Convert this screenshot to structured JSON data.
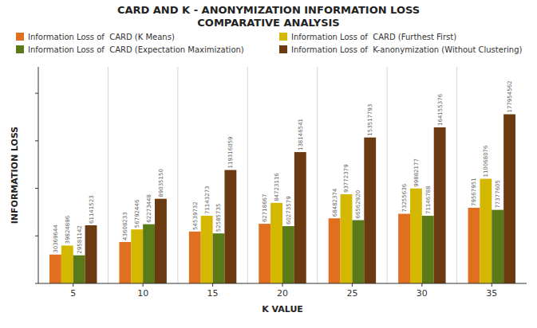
{
  "chart_data": {
    "type": "bar",
    "title": "CARD AND K - ANONYMIZATION INFORMATION LOSS\nCOMPARATIVE ANALYSIS",
    "x_label": "K VALUE",
    "y_label": "INFORMATION LOSS",
    "categories": [
      "5",
      "10",
      "15",
      "20",
      "25",
      "30",
      "35"
    ],
    "series": [
      {
        "name": "Information Loss of  CARD (K Means)",
        "color": "#E07020",
        "values": [
          30369644,
          43608233,
          54539732,
          62718667,
          68482374,
          73255636,
          79567951
        ]
      },
      {
        "name": "Information Loss of  CARD (Furthest First)",
        "color": "#D4B800",
        "values": [
          39824896,
          56792446,
          71143273,
          84723116,
          93772379,
          99882177,
          110068076
        ]
      },
      {
        "name": "Information Loss of  CARD (Expectation Maximization)",
        "color": "#5A7A1A",
        "values": [
          29581142,
          62273448,
          52585735,
          60273579,
          66562920,
          71146788,
          77377605
        ]
      },
      {
        "name": "Information Loss of  K-anonymization (Without Clustering)",
        "color": "#6B3A10",
        "values": [
          61141523,
          89035150,
          119316059,
          138146541,
          153517793,
          164155376,
          177954562
        ]
      }
    ],
    "ylim": [
      0,
      227781839.36
    ],
    "yticks": [
      0,
      50000000,
      100000000,
      150000000,
      200000000
    ],
    "tick_labels": "x",
    "data_labels": true,
    "grid": false,
    "legend": "top"
  }
}
